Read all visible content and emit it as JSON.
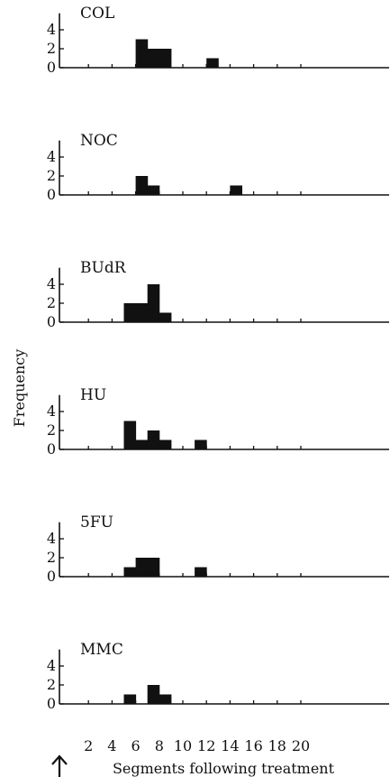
{
  "chart_data": {
    "type": "bar",
    "ylabel": "Frequency",
    "xlabel": "Segments following treatment",
    "x_ticks": [
      2,
      4,
      6,
      8,
      10,
      12,
      14,
      16,
      18,
      20
    ],
    "y_ticks": [
      0,
      2,
      4
    ],
    "xlim": [
      0,
      21
    ],
    "ylim": [
      0,
      4.6
    ],
    "bin_width": 1,
    "arrow_marker": "up-arrow-icon",
    "panels": [
      {
        "name": "COL",
        "bins": [
          {
            "x": 7,
            "value": 3
          },
          {
            "x": 8,
            "value": 2
          },
          {
            "x": 9,
            "value": 2
          },
          {
            "x": 13,
            "value": 1
          }
        ]
      },
      {
        "name": "NOC",
        "bins": [
          {
            "x": 7,
            "value": 2
          },
          {
            "x": 8,
            "value": 1
          },
          {
            "x": 15,
            "value": 1
          }
        ]
      },
      {
        "name": "BUdR",
        "bins": [
          {
            "x": 6,
            "value": 2
          },
          {
            "x": 7,
            "value": 2
          },
          {
            "x": 8,
            "value": 4
          },
          {
            "x": 9,
            "value": 1
          }
        ]
      },
      {
        "name": "HU",
        "bins": [
          {
            "x": 6,
            "value": 3
          },
          {
            "x": 7,
            "value": 1
          },
          {
            "x": 8,
            "value": 2
          },
          {
            "x": 9,
            "value": 1
          },
          {
            "x": 12,
            "value": 1
          }
        ]
      },
      {
        "name": "5FU",
        "bins": [
          {
            "x": 6,
            "value": 1
          },
          {
            "x": 7,
            "value": 2
          },
          {
            "x": 8,
            "value": 2
          },
          {
            "x": 12,
            "value": 1
          }
        ]
      },
      {
        "name": "MMC",
        "bins": [
          {
            "x": 6,
            "value": 1
          },
          {
            "x": 8,
            "value": 2
          },
          {
            "x": 9,
            "value": 1
          }
        ]
      }
    ]
  }
}
